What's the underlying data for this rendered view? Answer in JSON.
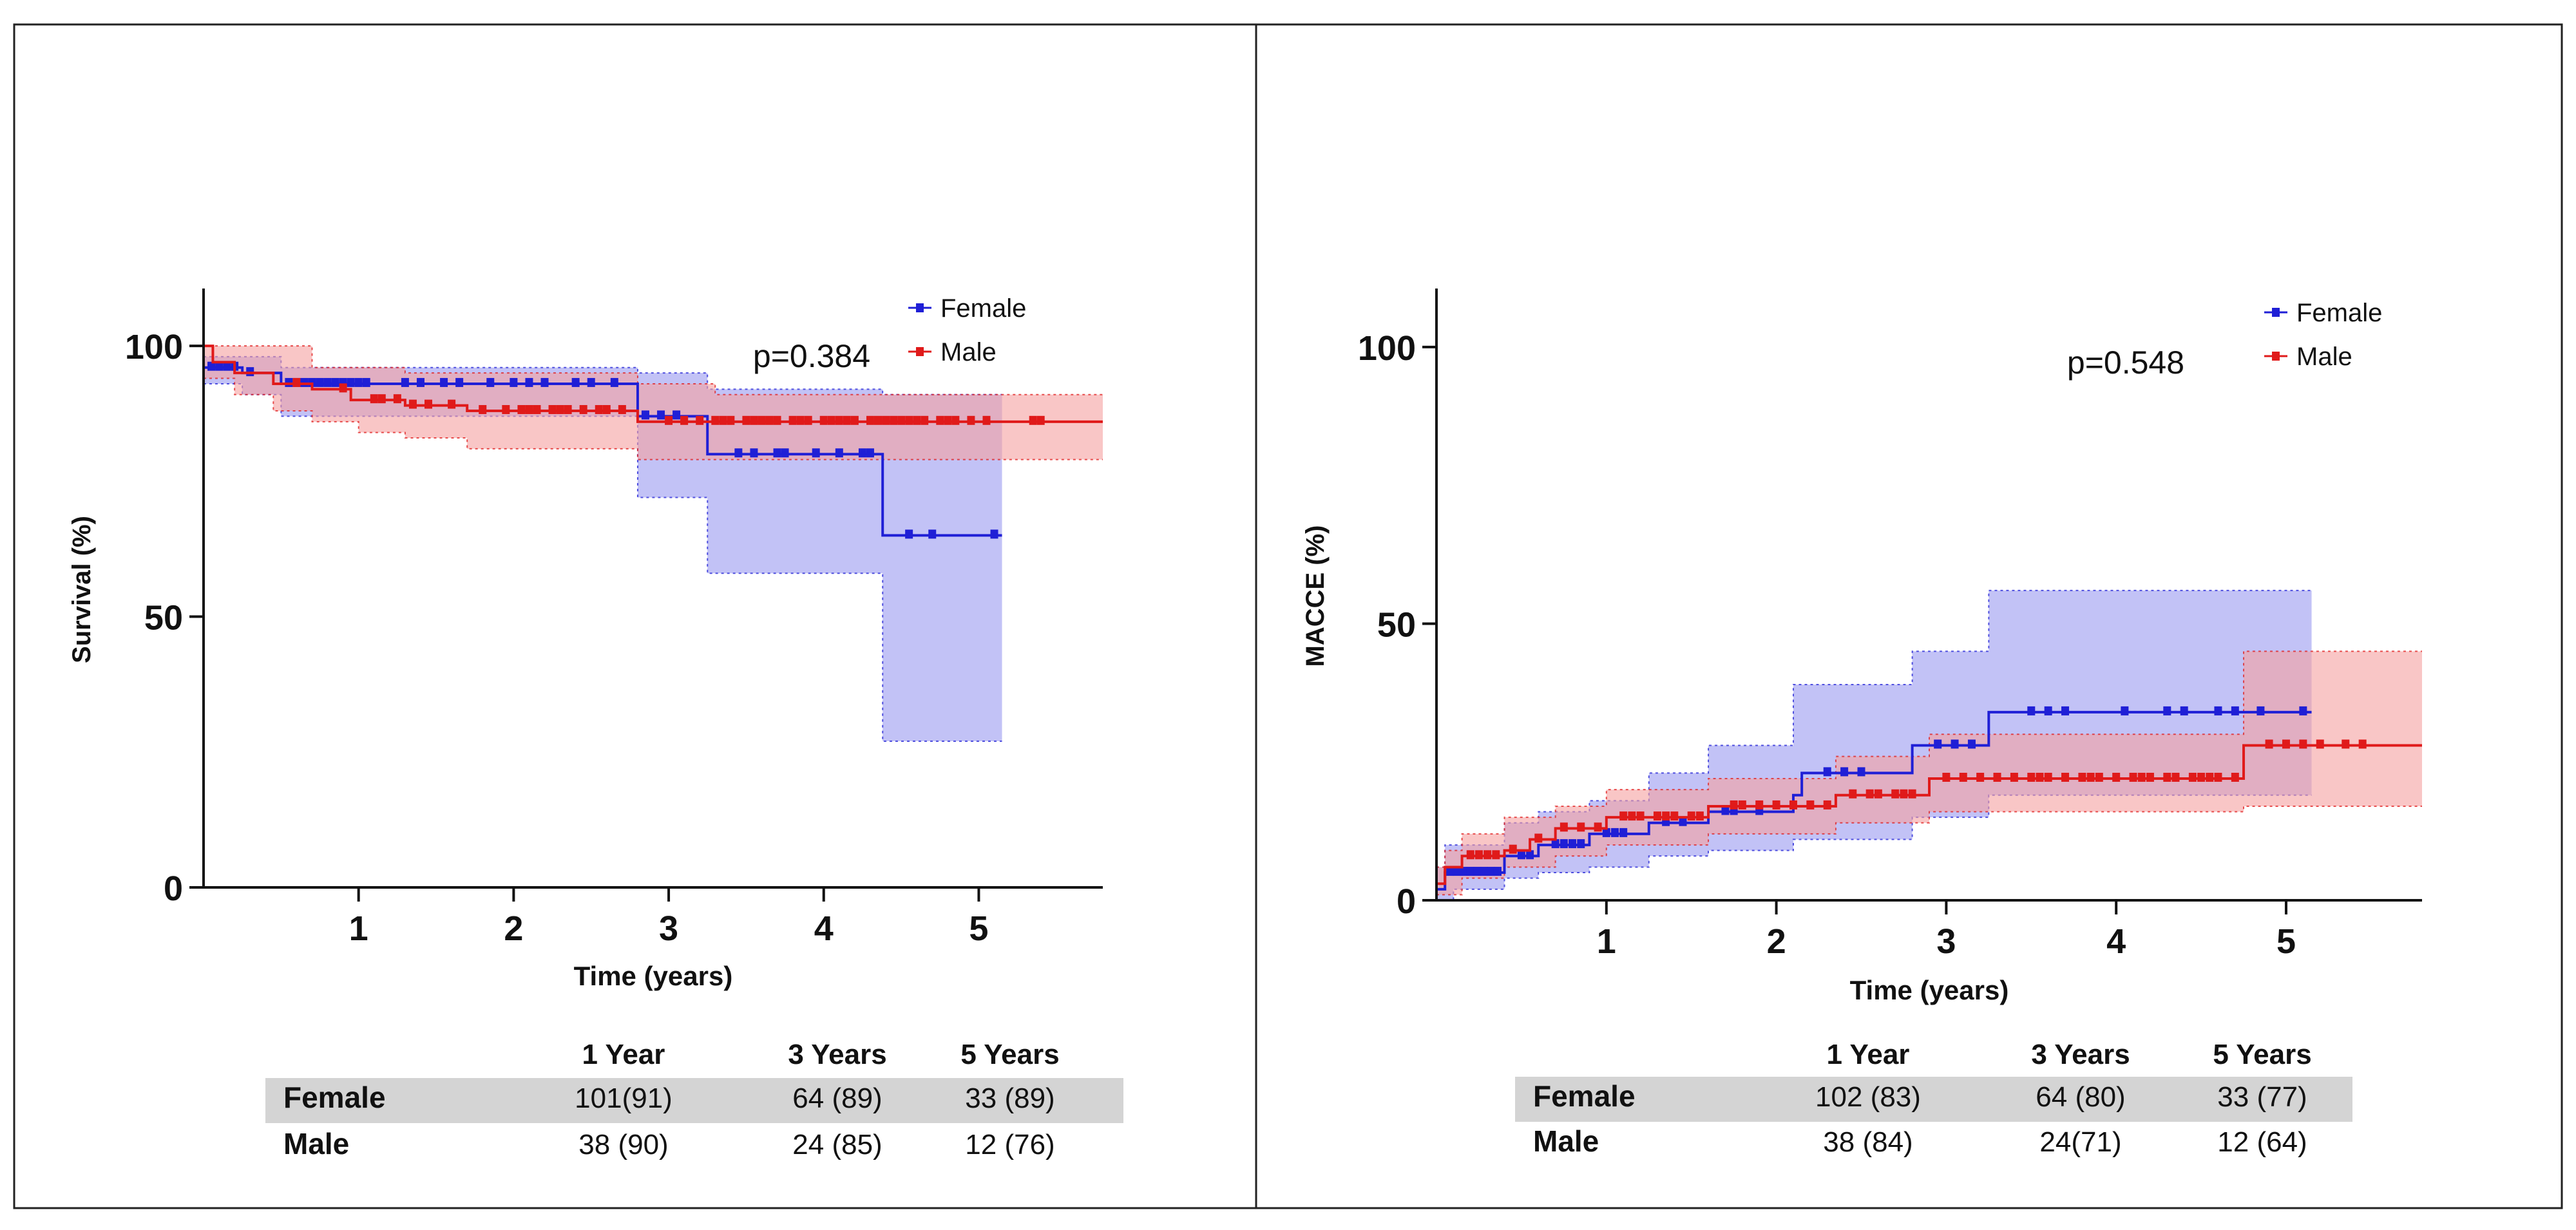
{
  "chart_data": [
    {
      "type": "line",
      "subtype": "kaplan-meier step with confidence bands",
      "ylabel": "Survival (%)",
      "xlabel": "Time (years)",
      "xlim": [
        0,
        5.8
      ],
      "ylim": [
        0,
        110
      ],
      "x_ticks": [
        "1",
        "2",
        "3",
        "4",
        "5"
      ],
      "y_ticks": [
        "0",
        "50",
        "100"
      ],
      "p_value": "p=0.384",
      "legend": [
        "Female",
        "Male"
      ],
      "series": [
        {
          "name": "Female",
          "color": "#1f1fd6",
          "band_color": "#9a9af0",
          "curve": [
            [
              0,
              96
            ],
            [
              0.25,
              96
            ],
            [
              0.25,
              95
            ],
            [
              0.5,
              95
            ],
            [
              0.5,
              93
            ],
            [
              2.8,
              93
            ],
            [
              2.8,
              87
            ],
            [
              3.25,
              87
            ],
            [
              3.25,
              80
            ],
            [
              4.38,
              80
            ],
            [
              4.38,
              65
            ],
            [
              5.15,
              65
            ]
          ],
          "upper": [
            [
              0,
              98
            ],
            [
              0.5,
              98
            ],
            [
              0.5,
              96
            ],
            [
              2.8,
              96
            ],
            [
              2.8,
              95
            ],
            [
              3.25,
              95
            ],
            [
              3.25,
              92
            ],
            [
              4.38,
              92
            ],
            [
              4.38,
              91
            ],
            [
              5.15,
              91
            ]
          ],
          "lower": [
            [
              0,
              93
            ],
            [
              0.25,
              93
            ],
            [
              0.25,
              91
            ],
            [
              0.5,
              91
            ],
            [
              0.5,
              87
            ],
            [
              2.8,
              87
            ],
            [
              2.8,
              72
            ],
            [
              3.25,
              72
            ],
            [
              3.25,
              58
            ],
            [
              4.38,
              58
            ],
            [
              4.38,
              27
            ],
            [
              5.15,
              27
            ]
          ],
          "censor_x": [
            0.05,
            0.1,
            0.15,
            0.2,
            0.3,
            0.55,
            0.6,
            0.65,
            0.7,
            0.75,
            0.8,
            0.85,
            0.9,
            0.95,
            1.0,
            1.05,
            1.3,
            1.4,
            1.55,
            1.65,
            1.85,
            2.0,
            2.1,
            2.2,
            2.4,
            2.5,
            2.65,
            2.85,
            2.95,
            3.05,
            3.45,
            3.55,
            3.7,
            3.75,
            3.95,
            4.1,
            4.25,
            4.3,
            4.55,
            4.7,
            5.1
          ]
        },
        {
          "name": "Male",
          "color": "#e01a1a",
          "band_color": "#f5a0a0",
          "curve": [
            [
              0,
              100
            ],
            [
              0.06,
              100
            ],
            [
              0.06,
              97
            ],
            [
              0.2,
              97
            ],
            [
              0.2,
              95
            ],
            [
              0.45,
              95
            ],
            [
              0.45,
              93
            ],
            [
              0.7,
              93
            ],
            [
              0.7,
              92
            ],
            [
              0.95,
              92
            ],
            [
              0.95,
              90
            ],
            [
              1.3,
              90
            ],
            [
              1.3,
              89
            ],
            [
              1.7,
              89
            ],
            [
              1.7,
              88
            ],
            [
              2.8,
              88
            ],
            [
              2.8,
              86
            ],
            [
              5.8,
              86
            ]
          ],
          "upper": [
            [
              0,
              100
            ],
            [
              0.7,
              100
            ],
            [
              0.7,
              96
            ],
            [
              1.3,
              96
            ],
            [
              1.3,
              95
            ],
            [
              2.8,
              95
            ],
            [
              2.8,
              93
            ],
            [
              3.3,
              93
            ],
            [
              3.3,
              91
            ],
            [
              5.8,
              91
            ]
          ],
          "lower": [
            [
              0,
              94
            ],
            [
              0.2,
              94
            ],
            [
              0.2,
              91
            ],
            [
              0.45,
              91
            ],
            [
              0.45,
              88
            ],
            [
              0.7,
              88
            ],
            [
              0.7,
              86
            ],
            [
              1.0,
              86
            ],
            [
              1.0,
              84
            ],
            [
              1.3,
              84
            ],
            [
              1.3,
              83
            ],
            [
              1.7,
              83
            ],
            [
              1.7,
              81
            ],
            [
              2.8,
              81
            ],
            [
              2.8,
              79
            ],
            [
              5.8,
              79
            ]
          ],
          "censor_x": [
            0.6,
            0.9,
            1.1,
            1.15,
            1.25,
            1.35,
            1.45,
            1.6,
            1.8,
            1.95,
            2.05,
            2.1,
            2.15,
            2.25,
            2.3,
            2.35,
            2.45,
            2.55,
            2.6,
            2.7,
            3.0,
            3.1,
            3.2,
            3.3,
            3.35,
            3.4,
            3.5,
            3.55,
            3.6,
            3.65,
            3.7,
            3.8,
            3.85,
            3.9,
            4.0,
            4.05,
            4.1,
            4.15,
            4.2,
            4.3,
            4.35,
            4.4,
            4.45,
            4.5,
            4.55,
            4.6,
            4.65,
            4.75,
            4.8,
            4.85,
            4.95,
            5.05,
            5.35,
            5.4
          ]
        }
      ],
      "risk_table": {
        "headers": [
          "1 Year",
          "3 Years",
          "5 Years"
        ],
        "rows": [
          {
            "label": "Female",
            "values": [
              "101(91)",
              "64 (89)",
              "33 (89)"
            ]
          },
          {
            "label": "Male",
            "values": [
              "38 (90)",
              "24 (85)",
              "12 (76)"
            ]
          }
        ]
      }
    },
    {
      "type": "line",
      "subtype": "kaplan-meier cumulative incidence step with confidence bands",
      "ylabel": "MACCE (%)",
      "xlabel": "Time (years)",
      "xlim": [
        0,
        5.8
      ],
      "ylim": [
        0,
        110
      ],
      "x_ticks": [
        "1",
        "2",
        "3",
        "4",
        "5"
      ],
      "y_ticks": [
        "0",
        "50",
        "100"
      ],
      "p_value": "p=0.548",
      "legend": [
        "Female",
        "Male"
      ],
      "series": [
        {
          "name": "Female",
          "color": "#1f1fd6",
          "band_color": "#9a9af0",
          "curve": [
            [
              0,
              2
            ],
            [
              0.05,
              2
            ],
            [
              0.05,
              5
            ],
            [
              0.4,
              5
            ],
            [
              0.4,
              8
            ],
            [
              0.6,
              8
            ],
            [
              0.6,
              10
            ],
            [
              0.9,
              10
            ],
            [
              0.9,
              12
            ],
            [
              1.25,
              12
            ],
            [
              1.25,
              14
            ],
            [
              1.6,
              14
            ],
            [
              1.6,
              16
            ],
            [
              2.1,
              16
            ],
            [
              2.1,
              19
            ],
            [
              2.15,
              19
            ],
            [
              2.15,
              23
            ],
            [
              2.8,
              23
            ],
            [
              2.8,
              28
            ],
            [
              3.25,
              28
            ],
            [
              3.25,
              34
            ],
            [
              5.15,
              34
            ]
          ],
          "upper": [
            [
              0,
              6
            ],
            [
              0.05,
              6
            ],
            [
              0.05,
              10
            ],
            [
              0.4,
              10
            ],
            [
              0.4,
              14
            ],
            [
              0.6,
              14
            ],
            [
              0.6,
              16
            ],
            [
              0.9,
              16
            ],
            [
              0.9,
              18
            ],
            [
              1.25,
              18
            ],
            [
              1.25,
              23
            ],
            [
              1.6,
              23
            ],
            [
              1.6,
              28
            ],
            [
              2.1,
              28
            ],
            [
              2.1,
              39
            ],
            [
              2.8,
              39
            ],
            [
              2.8,
              45
            ],
            [
              3.25,
              45
            ],
            [
              3.25,
              56
            ],
            [
              5.15,
              56
            ]
          ],
          "lower": [
            [
              0,
              0
            ],
            [
              0.1,
              0
            ],
            [
              0.1,
              2
            ],
            [
              0.4,
              2
            ],
            [
              0.4,
              4
            ],
            [
              0.6,
              4
            ],
            [
              0.6,
              5
            ],
            [
              0.9,
              5
            ],
            [
              0.9,
              6
            ],
            [
              1.25,
              6
            ],
            [
              1.25,
              8
            ],
            [
              1.6,
              8
            ],
            [
              1.6,
              9
            ],
            [
              2.1,
              9
            ],
            [
              2.1,
              11
            ],
            [
              2.8,
              11
            ],
            [
              2.8,
              15
            ],
            [
              3.25,
              15
            ],
            [
              3.25,
              19
            ],
            [
              5.15,
              19
            ]
          ],
          "censor_x": [
            0.08,
            0.12,
            0.16,
            0.2,
            0.24,
            0.28,
            0.32,
            0.36,
            0.5,
            0.55,
            0.7,
            0.75,
            0.8,
            0.85,
            1.0,
            1.05,
            1.1,
            1.35,
            1.45,
            1.7,
            1.75,
            1.9,
            2.3,
            2.4,
            2.5,
            2.95,
            3.05,
            3.15,
            3.5,
            3.6,
            3.7,
            4.05,
            4.3,
            4.4,
            4.6,
            4.7,
            4.85,
            5.1
          ]
        },
        {
          "name": "Male",
          "color": "#e01a1a",
          "band_color": "#f5a0a0",
          "curve": [
            [
              0,
              3
            ],
            [
              0.05,
              3
            ],
            [
              0.05,
              6
            ],
            [
              0.15,
              6
            ],
            [
              0.15,
              8
            ],
            [
              0.4,
              8
            ],
            [
              0.4,
              9
            ],
            [
              0.55,
              9
            ],
            [
              0.55,
              11
            ],
            [
              0.7,
              11
            ],
            [
              0.7,
              13
            ],
            [
              1.0,
              13
            ],
            [
              1.0,
              15
            ],
            [
              1.6,
              15
            ],
            [
              1.6,
              17
            ],
            [
              2.35,
              17
            ],
            [
              2.35,
              19
            ],
            [
              2.9,
              19
            ],
            [
              2.9,
              22
            ],
            [
              4.75,
              22
            ],
            [
              4.75,
              28
            ],
            [
              5.8,
              28
            ]
          ],
          "upper": [
            [
              0,
              6
            ],
            [
              0.05,
              6
            ],
            [
              0.05,
              9
            ],
            [
              0.15,
              9
            ],
            [
              0.15,
              12
            ],
            [
              0.4,
              12
            ],
            [
              0.4,
              15
            ],
            [
              0.7,
              15
            ],
            [
              0.7,
              17
            ],
            [
              1.0,
              17
            ],
            [
              1.0,
              20
            ],
            [
              1.6,
              20
            ],
            [
              1.6,
              22
            ],
            [
              2.35,
              22
            ],
            [
              2.35,
              26
            ],
            [
              2.9,
              26
            ],
            [
              2.9,
              30
            ],
            [
              4.75,
              30
            ],
            [
              4.75,
              45
            ],
            [
              5.8,
              45
            ]
          ],
          "lower": [
            [
              0,
              1
            ],
            [
              0.15,
              1
            ],
            [
              0.15,
              4
            ],
            [
              0.4,
              4
            ],
            [
              0.4,
              6
            ],
            [
              0.7,
              6
            ],
            [
              0.7,
              8
            ],
            [
              1.0,
              8
            ],
            [
              1.0,
              10
            ],
            [
              1.6,
              10
            ],
            [
              1.6,
              12
            ],
            [
              2.35,
              12
            ],
            [
              2.35,
              14
            ],
            [
              2.9,
              14
            ],
            [
              2.9,
              16
            ],
            [
              4.75,
              16
            ],
            [
              4.75,
              17
            ],
            [
              5.8,
              17
            ]
          ],
          "censor_x": [
            0.2,
            0.25,
            0.3,
            0.35,
            0.45,
            0.6,
            0.75,
            0.85,
            0.95,
            1.1,
            1.15,
            1.2,
            1.3,
            1.35,
            1.4,
            1.5,
            1.55,
            1.75,
            1.8,
            1.9,
            2.0,
            2.1,
            2.2,
            2.3,
            2.45,
            2.55,
            2.6,
            2.7,
            2.75,
            2.8,
            3.0,
            3.1,
            3.2,
            3.3,
            3.4,
            3.5,
            3.55,
            3.6,
            3.7,
            3.8,
            3.85,
            3.9,
            4.0,
            4.1,
            4.15,
            4.2,
            4.3,
            4.35,
            4.45,
            4.5,
            4.55,
            4.6,
            4.7,
            4.9,
            5.0,
            5.1,
            5.2,
            5.35,
            5.45
          ]
        }
      ],
      "risk_table": {
        "headers": [
          "1 Year",
          "3 Years",
          "5 Years"
        ],
        "rows": [
          {
            "label": "Female",
            "values": [
              "102 (83)",
              "64 (80)",
              "33 (77)"
            ]
          },
          {
            "label": "Male",
            "values": [
              "38 (84)",
              "24(71)",
              "12 (64)"
            ]
          }
        ]
      }
    }
  ]
}
